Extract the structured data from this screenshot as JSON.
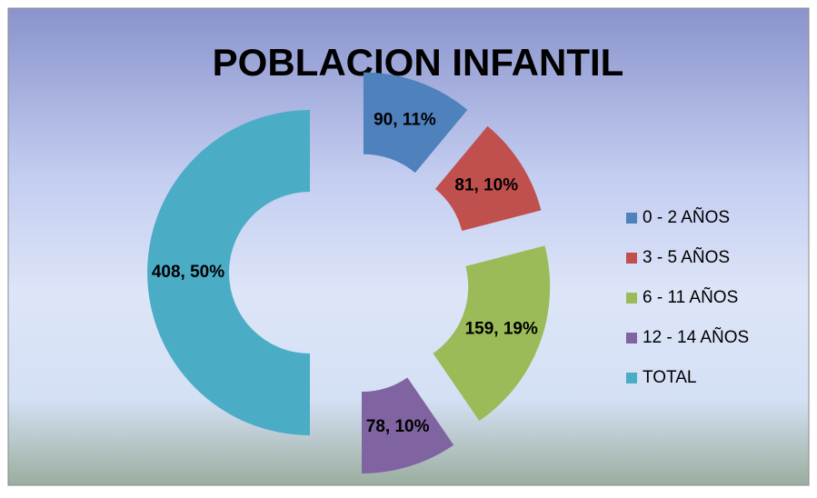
{
  "chart_data": {
    "type": "doughnut",
    "title": "POBLACION INFANTIL",
    "categories": [
      "0 - 2 AÑOS",
      "3 - 5 AÑOS",
      "6 - 11 AÑOS",
      "12 - 14 AÑOS",
      "TOTAL"
    ],
    "values": [
      90,
      81,
      159,
      78,
      408
    ],
    "value_labels": [
      "90, 11%",
      "81, 10%",
      "159, 19%",
      "78, 10%",
      "408, 50%"
    ],
    "colors": [
      "#4f81bd",
      "#c0504d",
      "#9bbb59",
      "#8064a2",
      "#4bacc6"
    ],
    "legend": "right"
  }
}
